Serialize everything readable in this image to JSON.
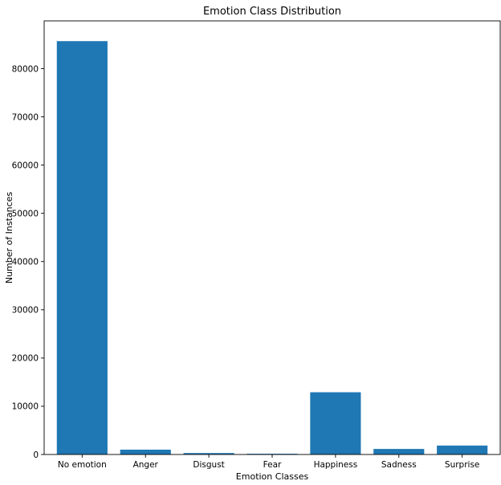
{
  "chart_data": {
    "type": "bar",
    "title": "Emotion Class Distribution",
    "xlabel": "Emotion Classes",
    "ylabel": "Number of Instances",
    "categories": [
      "No emotion",
      "Anger",
      "Disgust",
      "Fear",
      "Happiness",
      "Sadness",
      "Surprise"
    ],
    "values": [
      85700,
      1000,
      300,
      150,
      12900,
      1150,
      1850
    ],
    "ylim": [
      0,
      89900
    ],
    "yticks": [
      0,
      10000,
      20000,
      30000,
      40000,
      50000,
      60000,
      70000,
      80000
    ],
    "ytick_labels": [
      "0",
      "10000",
      "20000",
      "30000",
      "40000",
      "50000",
      "60000",
      "70000",
      "80000"
    ],
    "bar_color": "#1f77b4",
    "grid": false,
    "legend": false
  }
}
